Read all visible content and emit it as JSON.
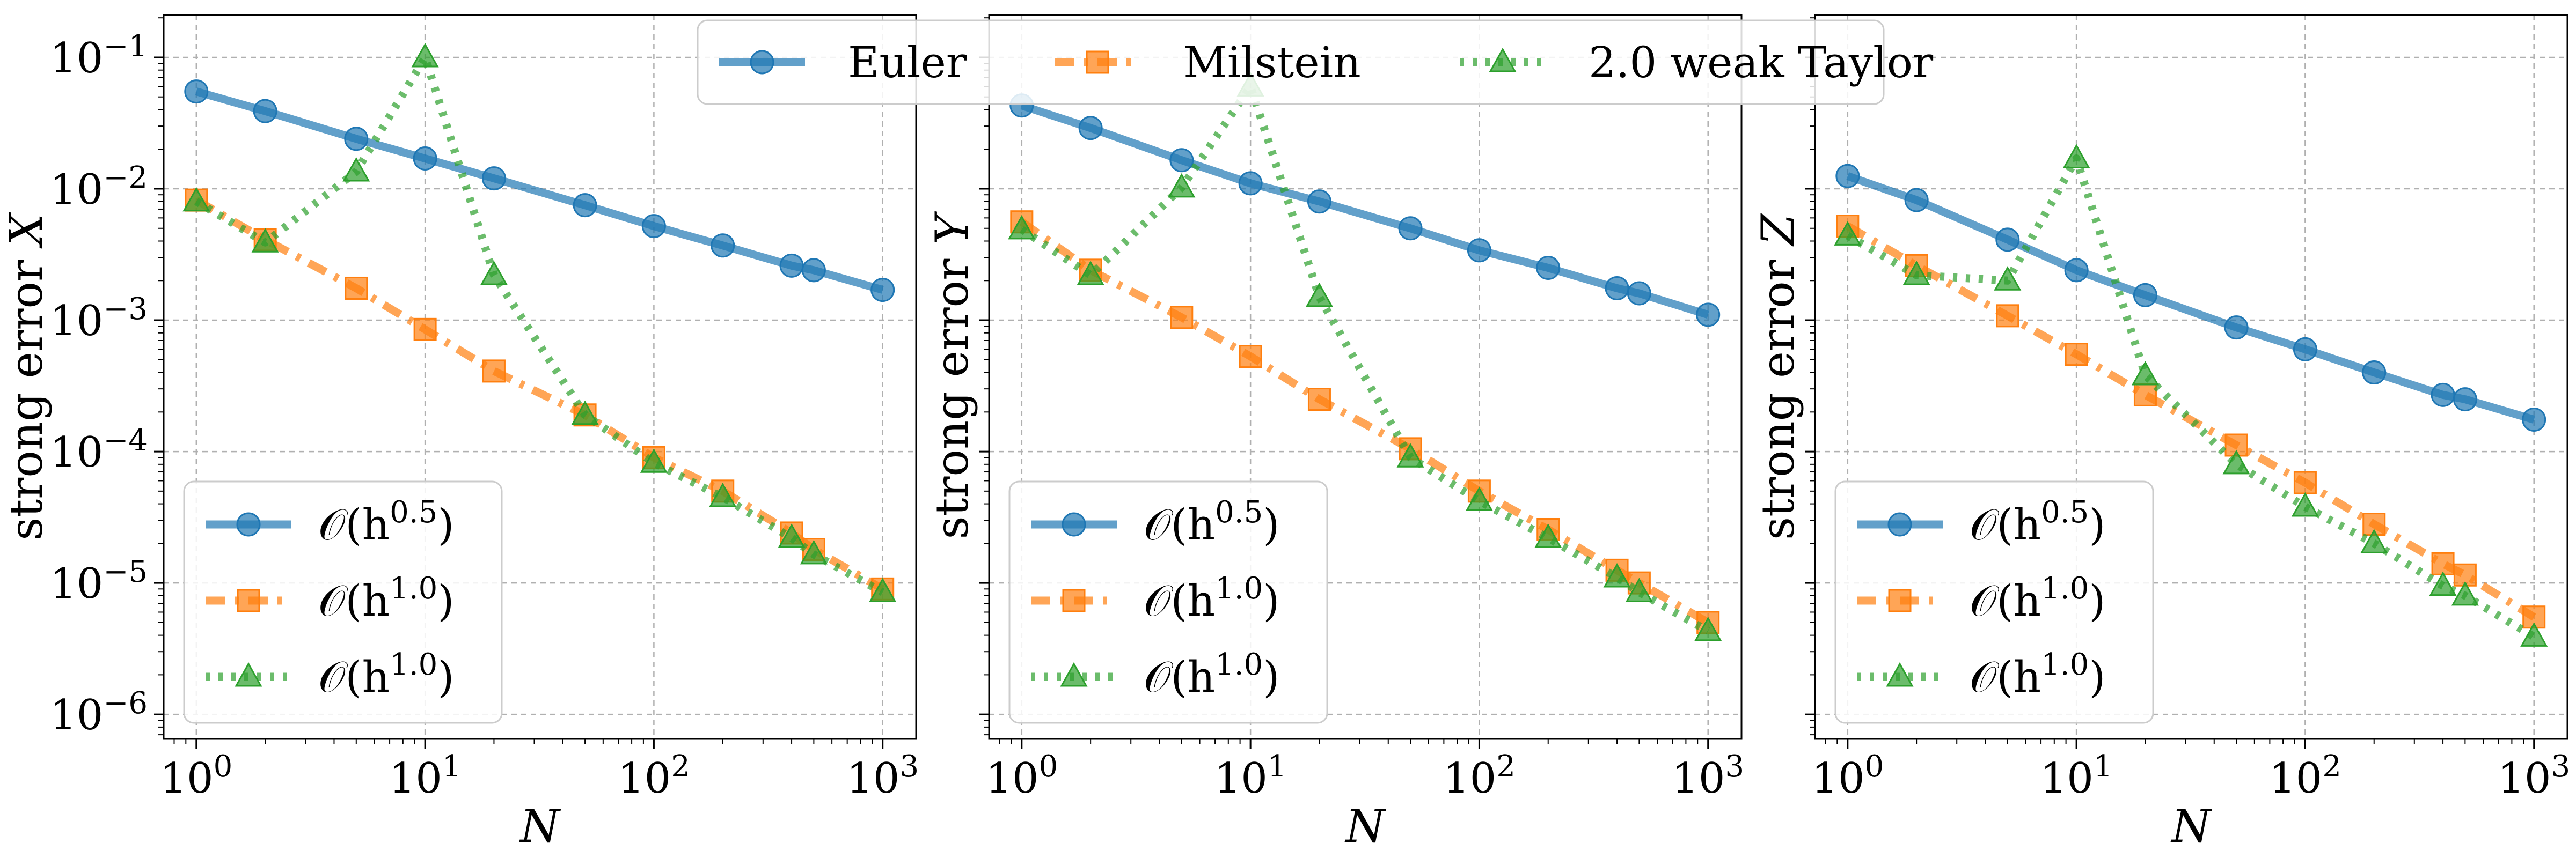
{
  "chart_data": [
    {
      "type": "line",
      "scale": "log-log",
      "xlabel": "N",
      "ylabel": "strong error X",
      "xlim": [
        0.72,
        1400
      ],
      "ylim": [
        6.5e-07,
        0.21
      ],
      "xticks": [
        {
          "v": 1,
          "label": "10^0"
        },
        {
          "v": 10,
          "label": "10^1"
        },
        {
          "v": 100,
          "label": "10^2"
        },
        {
          "v": 1000,
          "label": "10^3"
        }
      ],
      "yticks": [
        {
          "v": 1e-06,
          "label": "10^−6"
        },
        {
          "v": 1e-05,
          "label": "10^−5"
        },
        {
          "v": 0.0001,
          "label": "10^−4"
        },
        {
          "v": 0.001,
          "label": "10^−3"
        },
        {
          "v": 0.01,
          "label": "10^−2"
        },
        {
          "v": 0.1,
          "label": "10^−1"
        }
      ],
      "y_tick_labels_visible": true,
      "x": [
        1,
        2,
        5,
        10,
        20,
        50,
        100,
        200,
        400,
        500,
        1000
      ],
      "series": [
        {
          "name": "Euler",
          "values": [
            0.055,
            0.039,
            0.024,
            0.017,
            0.012,
            0.0075,
            0.0052,
            0.0037,
            0.0026,
            0.0024,
            0.0017
          ]
        },
        {
          "name": "Milstein",
          "values": [
            0.0082,
            0.0041,
            0.00175,
            0.00085,
            0.00041,
            0.00019,
            9e-05,
            5e-05,
            2.4e-05,
            1.8e-05,
            9e-06
          ]
        },
        {
          "name": "2.0 weak Taylor",
          "values": [
            0.008,
            0.0039,
            0.0135,
            0.1,
            0.0022,
            0.00019,
            8.2e-05,
            4.5e-05,
            2.2e-05,
            1.65e-05,
            8.5e-06
          ]
        }
      ],
      "legend": {
        "position": "lower-left",
        "entries": [
          {
            "series": 0,
            "base": "𝒪(h",
            "exp": "0.5",
            "close": ")"
          },
          {
            "series": 1,
            "base": "𝒪(h",
            "exp": "1.0",
            "close": ")"
          },
          {
            "series": 2,
            "base": "𝒪(h",
            "exp": "1.0",
            "close": ")"
          }
        ]
      }
    },
    {
      "type": "line",
      "scale": "log-log",
      "xlabel": "N",
      "ylabel": "strong error Y",
      "xlim": [
        0.72,
        1400
      ],
      "ylim": [
        6.5e-07,
        0.21
      ],
      "xticks": [
        {
          "v": 1,
          "label": "10^0"
        },
        {
          "v": 10,
          "label": "10^1"
        },
        {
          "v": 100,
          "label": "10^2"
        },
        {
          "v": 1000,
          "label": "10^3"
        }
      ],
      "yticks": [
        {
          "v": 1e-06,
          "label": "10^−6"
        },
        {
          "v": 1e-05,
          "label": "10^−5"
        },
        {
          "v": 0.0001,
          "label": "10^−4"
        },
        {
          "v": 0.001,
          "label": "10^−3"
        },
        {
          "v": 0.01,
          "label": "10^−2"
        },
        {
          "v": 0.1,
          "label": "10^−1"
        }
      ],
      "y_tick_labels_visible": false,
      "x": [
        1,
        2,
        5,
        10,
        20,
        50,
        100,
        200,
        400,
        500,
        1000
      ],
      "series": [
        {
          "name": "Euler",
          "values": [
            0.043,
            0.029,
            0.0165,
            0.011,
            0.008,
            0.005,
            0.0034,
            0.0025,
            0.00175,
            0.0016,
            0.0011
          ]
        },
        {
          "name": "Milstein",
          "values": [
            0.0056,
            0.0024,
            0.00105,
            0.00053,
            0.00025,
            0.000105,
            5e-05,
            2.55e-05,
            1.25e-05,
            1e-05,
            5e-06
          ]
        },
        {
          "name": "2.0 weak Taylor",
          "values": [
            0.0049,
            0.0022,
            0.0102,
            0.06,
            0.0015,
            9e-05,
            4.2e-05,
            2.2e-05,
            1.1e-05,
            8.5e-06,
            4.3e-06
          ]
        }
      ],
      "legend": {
        "position": "lower-left",
        "entries": [
          {
            "series": 0,
            "base": "𝒪(h",
            "exp": "0.5",
            "close": ")"
          },
          {
            "series": 1,
            "base": "𝒪(h",
            "exp": "1.0",
            "close": ")"
          },
          {
            "series": 2,
            "base": "𝒪(h",
            "exp": "1.0",
            "close": ")"
          }
        ]
      }
    },
    {
      "type": "line",
      "scale": "log-log",
      "xlabel": "N",
      "ylabel": "strong error Z",
      "xlim": [
        0.72,
        1400
      ],
      "ylim": [
        6.5e-07,
        0.21
      ],
      "xticks": [
        {
          "v": 1,
          "label": "10^0"
        },
        {
          "v": 10,
          "label": "10^1"
        },
        {
          "v": 100,
          "label": "10^2"
        },
        {
          "v": 1000,
          "label": "10^3"
        }
      ],
      "yticks": [
        {
          "v": 1e-06,
          "label": "10^−6"
        },
        {
          "v": 1e-05,
          "label": "10^−5"
        },
        {
          "v": 0.0001,
          "label": "10^−4"
        },
        {
          "v": 0.001,
          "label": "10^−3"
        },
        {
          "v": 0.01,
          "label": "10^−2"
        },
        {
          "v": 0.1,
          "label": "10^−1"
        }
      ],
      "y_tick_labels_visible": false,
      "x": [
        1,
        2,
        5,
        10,
        20,
        50,
        100,
        200,
        400,
        500,
        1000
      ],
      "series": [
        {
          "name": "Euler",
          "values": [
            0.0125,
            0.0082,
            0.0041,
            0.0024,
            0.00155,
            0.00088,
            0.0006,
            0.0004,
            0.00027,
            0.00025,
            0.000175
          ]
        },
        {
          "name": "Milstein",
          "values": [
            0.0052,
            0.0026,
            0.00108,
            0.00055,
            0.00027,
            0.000112,
            5.8e-05,
            2.8e-05,
            1.4e-05,
            1.15e-05,
            5.5e-06
          ]
        },
        {
          "name": "2.0 weak Taylor",
          "values": [
            0.0044,
            0.0022,
            0.002,
            0.017,
            0.00038,
            8e-05,
            3.8e-05,
            2e-05,
            9.5e-06,
            8e-06,
            3.9e-06
          ]
        }
      ],
      "legend": {
        "position": "lower-left",
        "entries": [
          {
            "series": 0,
            "base": "𝒪(h",
            "exp": "0.5",
            "close": ")"
          },
          {
            "series": 1,
            "base": "𝒪(h",
            "exp": "1.0",
            "close": ")"
          },
          {
            "series": 2,
            "base": "𝒪(h",
            "exp": "1.0",
            "close": ")"
          }
        ]
      }
    }
  ],
  "figure_legend": {
    "position": "top-center",
    "entries": [
      "Euler",
      "Milstein",
      "2.0 weak Taylor"
    ]
  },
  "series_styles": [
    {
      "color": "#1f77b4",
      "marker": "circle",
      "dash": "solid"
    },
    {
      "color": "#ff7f0e",
      "marker": "square",
      "dash": "dashdot"
    },
    {
      "color": "#2ca02c",
      "marker": "triangle",
      "dash": "dotted"
    }
  ]
}
